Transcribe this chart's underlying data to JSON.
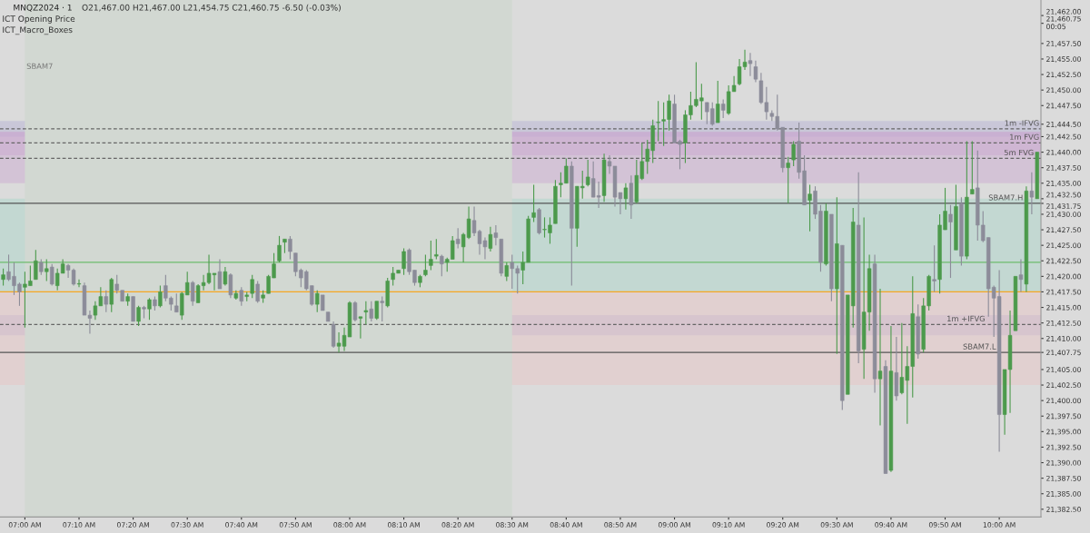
{
  "chart_data": {
    "type": "candlestick",
    "title": "MNQZ2024 · 1",
    "subtitle": "O21,467.00 H21,467.00 L21,454.75 C21,460.75 -6.50 (-0.03%)",
    "annotations": [
      "ICT Opening Price",
      "ICT_Macro_Boxes"
    ],
    "colors": [
      "#4c9a4c",
      "#8c8c99",
      "#8c8c99",
      "#8c8c99",
      "#4c9a4c",
      "#4c9a4c",
      "#4c9a4c",
      "#8c8c99",
      "#4c9a4c",
      "#8c8c99",
      "#4c9a4c",
      "#4c9a4c",
      "#8c8c99",
      "#8c8c99",
      "#4c9a4c",
      "#8c8c99",
      "#8c8c99",
      "#4c9a4c",
      "#4c9a4c",
      "#8c8c99",
      "#4c9a4c",
      "#8c8c99",
      "#8c8c99",
      "#4c9a4c",
      "#8c8c99",
      "#4c9a4c",
      "#8c8c99",
      "#4c9a4c",
      "#8c8c99",
      "#4c9a4c",
      "#8c8c99",
      "#8c8c99",
      "#8c8c99",
      "#4c9a4c",
      "#4c9a4c",
      "#8c8c99",
      "#4c9a4c",
      "#4c9a4c",
      "#4c9a4c",
      "#4c9a4c",
      "#8c8c99",
      "#4c9a4c",
      "#8c8c99",
      "#4c9a4c",
      "#8c8c99",
      "#4c9a4c",
      "#4c9a4c",
      "#8c8c99",
      "#4c9a4c",
      "#4c9a4c",
      "#4c9a4c",
      "#4c9a4c",
      "#4c9a4c",
      "#8c8c99",
      "#8c8c99",
      "#8c8c99",
      "#8c8c99",
      "#8c8c99",
      "#4c9a4c",
      "#8c8c99",
      "#8c8c99",
      "#8c8c99",
      "#4c9a4c",
      "#4c9a4c",
      "#4c9a4c",
      "#8c8c99",
      "#4c9a4c",
      "#4c9a4c",
      "#8c8c99",
      "#4c9a4c",
      "#8c8c99",
      "#4c9a4c",
      "#4c9a4c",
      "#4c9a4c",
      "#4c9a4c",
      "#8c8c99",
      "#8c8c99",
      "#4c9a4c",
      "#4c9a4c",
      "#4c9a4c",
      "#4c9a4c",
      "#8c8c99",
      "#4c9a4c",
      "#4c9a4c",
      "#8c8c99",
      "#4c9a4c",
      "#4c9a4c",
      "#8c8c99",
      "#8c8c99",
      "#8c8c99",
      "#4c9a4c",
      "#8c8c99",
      "#8c8c99",
      "#4c9a4c",
      "#8c8c99",
      "#8c8c99",
      "#4c9a4c",
      "#4c9a4c",
      "#4c9a4c",
      "#8c8c99",
      "#4c9a4c",
      "#4c9a4c",
      "#4c9a4c",
      "#4c9a4c",
      "#4c9a4c",
      "#8c8c99",
      "#4c9a4c",
      "#4c9a4c",
      "#4c9a4c",
      "#8c8c99",
      "#8c8c99",
      "#4c9a4c",
      "#8c8c99",
      "#8c8c99",
      "#8c8c99",
      "#4c9a4c",
      "#8c8c99",
      "#4c9a4c",
      "#4c9a4c",
      "#4c9a4c",
      "#4c9a4c",
      "#4c9a4c",
      "#4c9a4c",
      "#4c9a4c",
      "#8c8c99",
      "#8c8c99",
      "#4c9a4c",
      "#4c9a4c",
      "#4c9a4c",
      "#4c9a4c",
      "#8c8c99",
      "#8c8c99",
      "#4c9a4c",
      "#8c8c99",
      "#4c9a4c",
      "#4c9a4c",
      "#4c9a4c",
      "#4c9a4c",
      "#8c8c99",
      "#8c8c99",
      "#8c8c99",
      "#8c8c99",
      "#8c8c99",
      "#8c8c99",
      "#8c8c99",
      "#4c9a4c",
      "#4c9a4c",
      "#8c8c99",
      "#8c8c99",
      "#4c9a4c",
      "#8c8c99",
      "#8c8c99",
      "#4c9a4c",
      "#8c8c99",
      "#4c9a4c",
      "#8c8c99",
      "#4c9a4c",
      "#4c9a4c",
      "#8c8c99",
      "#4c9a4c",
      "#4c9a4c",
      "#8c8c99",
      "#4c9a4c",
      "#8c8c99",
      "#4c9a4c",
      "#8c8c99",
      "#4c9a4c",
      "#4c9a4c",
      "#4c9a4c",
      "#8c8c99",
      "#4c9a4c",
      "#4c9a4c",
      "#8c8c99",
      "#4c9a4c",
      "#4c9a4c",
      "#8c8c99",
      "#4c9a4c",
      "#8c8c99",
      "#4c9a4c",
      "#4c9a4c",
      "#8c8c99",
      "#8c8c99",
      "#8c8c99",
      "#8c8c99",
      "#8c8c99",
      "#4c9a4c",
      "#4c9a4c",
      "#4c9a4c",
      "#8c8c99",
      "#4c9a4c",
      "#8c8c99",
      "#4c9a4c"
    ],
    "categories": [
      null,
      null,
      null,
      null,
      "07:00 AM",
      null,
      null,
      null,
      null,
      null,
      null,
      null,
      null,
      null,
      "07:10 AM",
      null,
      null,
      null,
      null,
      null,
      null,
      null,
      null,
      null,
      "07:20 AM",
      null,
      null,
      null,
      null,
      null,
      null,
      null,
      null,
      null,
      "07:30 AM",
      null,
      null,
      null,
      null,
      null,
      null,
      null,
      null,
      null,
      "07:40 AM",
      null,
      null,
      null,
      null,
      null,
      null,
      null,
      null,
      null,
      "07:50 AM",
      null,
      null,
      null,
      null,
      null,
      null,
      null,
      null,
      null,
      "08:00 AM",
      null,
      null,
      null,
      null,
      null,
      null,
      null,
      null,
      null,
      "08:10 AM",
      null,
      null,
      null,
      null,
      null,
      null,
      null,
      null,
      null,
      "08:20 AM",
      null,
      null,
      null,
      null,
      null,
      null,
      null,
      null,
      null,
      "08:30 AM",
      null,
      null,
      null,
      null,
      null,
      null,
      null,
      null,
      null,
      "08:40 AM",
      null,
      null,
      null,
      null,
      null,
      null,
      null,
      null,
      null,
      "08:50 AM",
      null,
      null,
      null,
      null,
      null,
      null,
      null,
      null,
      null,
      "09:00 AM",
      null,
      null,
      null,
      null,
      null,
      null,
      null,
      null,
      null,
      "09:10 AM",
      null,
      null,
      null,
      null,
      null,
      null,
      null,
      null,
      null,
      "09:20 AM",
      null,
      null,
      null,
      null,
      null,
      null,
      null,
      null,
      null,
      "09:30 AM",
      null,
      null,
      null,
      null,
      null,
      null,
      null,
      null,
      null,
      "09:40 AM",
      null,
      null,
      null,
      null,
      null,
      null,
      null,
      null,
      null,
      "09:50 AM",
      null,
      null,
      null,
      null,
      null,
      null,
      null,
      null,
      null,
      "10:00 AM",
      null,
      null,
      null,
      null,
      null,
      null,
      null
    ],
    "ohlc": [
      [
        21419.5,
        21421.25,
        21418.5,
        21420.25
      ],
      [
        21420.75,
        21423.5,
        21419.25,
        21419.5
      ],
      [
        21420.0,
        21422.25,
        21417.0,
        21418.5
      ],
      [
        21418.75,
        21419.0,
        21415.25,
        21417.5
      ],
      [
        21418.25,
        21420.75,
        21411.75,
        21418.75
      ],
      [
        21418.5,
        21421.75,
        21418.5,
        21419.25
      ],
      [
        21419.5,
        21424.25,
        21419.5,
        21422.5
      ],
      [
        21422.25,
        21422.75,
        21420.25,
        21420.75
      ],
      [
        21420.75,
        21422.75,
        21419.25,
        21421.25
      ],
      [
        21421.5,
        21422.0,
        21418.5,
        21418.75
      ],
      [
        21418.5,
        21421.25,
        21417.75,
        21420.5
      ],
      [
        21420.5,
        21422.75,
        21420.5,
        21422.0
      ],
      [
        21421.75,
        21422.0,
        21419.75,
        21421.0
      ],
      [
        21421.0,
        21421.25,
        21418.5,
        21418.75
      ],
      [
        21418.75,
        21419.5,
        21418.25,
        21418.75
      ],
      [
        21418.5,
        21419.0,
        21413.75,
        21413.75
      ],
      [
        21413.75,
        21414.5,
        21410.75,
        21413.25
      ],
      [
        21413.75,
        21416.0,
        21413.0,
        21415.25
      ],
      [
        21415.25,
        21418.25,
        21415.25,
        21416.75
      ],
      [
        21416.75,
        21417.75,
        21414.25,
        21415.5
      ],
      [
        21415.5,
        21419.75,
        21414.25,
        21419.5
      ],
      [
        21418.75,
        21420.25,
        21417.25,
        21417.75
      ],
      [
        21417.75,
        21417.75,
        21416.0,
        21416.0
      ],
      [
        21416.0,
        21417.25,
        21415.25,
        21416.75
      ],
      [
        21416.75,
        21416.75,
        21412.75,
        21412.75
      ],
      [
        21412.75,
        21415.25,
        21412.0,
        21415.0
      ],
      [
        21415.0,
        21415.25,
        21413.25,
        21414.75
      ],
      [
        21414.75,
        21416.5,
        21413.0,
        21416.25
      ],
      [
        21416.25,
        21416.75,
        21414.5,
        21415.25
      ],
      [
        21415.25,
        21418.5,
        21415.0,
        21417.5
      ],
      [
        21418.5,
        21420.25,
        21416.0,
        21416.5
      ],
      [
        21416.5,
        21416.75,
        21414.5,
        21415.5
      ],
      [
        21415.25,
        21417.25,
        21414.25,
        21414.25
      ],
      [
        21413.75,
        21417.5,
        21413.0,
        21417.25
      ],
      [
        21417.0,
        21420.75,
        21417.0,
        21419.0
      ],
      [
        21419.0,
        21419.25,
        21415.25,
        21416.0
      ],
      [
        21415.75,
        21418.75,
        21415.75,
        21418.5
      ],
      [
        21418.5,
        21420.25,
        21417.75,
        21419.0
      ],
      [
        21419.0,
        21423.5,
        21418.75,
        21420.5
      ],
      [
        21420.25,
        21420.5,
        21417.75,
        21420.5
      ],
      [
        21420.75,
        21422.75,
        21418.0,
        21418.0
      ],
      [
        21418.75,
        21421.5,
        21418.5,
        21420.75
      ],
      [
        21420.25,
        21420.5,
        21416.5,
        21417.0
      ],
      [
        21416.5,
        21417.75,
        21416.25,
        21417.25
      ],
      [
        21417.75,
        21418.25,
        21415.25,
        21416.0
      ],
      [
        21416.75,
        21417.5,
        21416.0,
        21417.0
      ],
      [
        21417.25,
        21420.25,
        21416.5,
        21419.5
      ],
      [
        21418.75,
        21419.25,
        21415.75,
        21416.0
      ],
      [
        21416.5,
        21417.75,
        21415.75,
        21417.0
      ],
      [
        21417.25,
        21420.25,
        21417.25,
        21420.0
      ],
      [
        21419.75,
        21423.75,
        21419.75,
        21422.0
      ],
      [
        21422.5,
        21426.5,
        21422.25,
        21425.0
      ],
      [
        21425.5,
        21426.0,
        21423.75,
        21426.0
      ],
      [
        21426.0,
        21426.5,
        21422.75,
        21424.0
      ],
      [
        21423.75,
        21423.75,
        21420.0,
        21420.75
      ],
      [
        21421.0,
        21421.25,
        21418.25,
        21419.75
      ],
      [
        21420.75,
        21421.0,
        21417.75,
        21418.0
      ],
      [
        21418.5,
        21418.5,
        21415.25,
        21415.5
      ],
      [
        21415.5,
        21417.75,
        21414.25,
        21417.25
      ],
      [
        21417.0,
        21417.0,
        21414.5,
        21414.5
      ],
      [
        21414.25,
        21414.25,
        21412.75,
        21412.75
      ],
      [
        21412.25,
        21412.75,
        21408.5,
        21408.75
      ],
      [
        21408.75,
        21411.0,
        21407.75,
        21409.25
      ],
      [
        21408.75,
        21411.75,
        21408.0,
        21410.5
      ],
      [
        21410.25,
        21416.0,
        21410.25,
        21415.75
      ],
      [
        21415.75,
        21416.0,
        21412.75,
        21413.0
      ],
      [
        21413.25,
        21413.5,
        21410.0,
        21413.5
      ],
      [
        21414.25,
        21416.0,
        21412.25,
        21414.5
      ],
      [
        21414.75,
        21416.0,
        21412.75,
        21413.25
      ],
      [
        21413.25,
        21416.0,
        21413.0,
        21416.0
      ],
      [
        21416.0,
        21416.75,
        21412.75,
        21415.75
      ],
      [
        21415.25,
        21419.75,
        21415.0,
        21419.25
      ],
      [
        21419.5,
        21421.5,
        21418.5,
        21420.5
      ],
      [
        21420.5,
        21421.0,
        21420.5,
        21421.0
      ],
      [
        21421.25,
        21424.5,
        21420.25,
        21424.0
      ],
      [
        21424.25,
        21424.5,
        21420.25,
        21420.75
      ],
      [
        21421.0,
        21421.0,
        21418.5,
        21419.0
      ],
      [
        21419.0,
        21420.25,
        21418.25,
        21420.0
      ],
      [
        21420.25,
        21423.5,
        21420.0,
        21421.0
      ],
      [
        21421.75,
        21425.75,
        21421.0,
        21422.75
      ],
      [
        21423.25,
        21426.0,
        21422.75,
        21423.5
      ],
      [
        21423.25,
        21423.5,
        21420.0,
        21422.0
      ],
      [
        21422.25,
        21423.0,
        21420.75,
        21422.75
      ],
      [
        21422.75,
        21426.5,
        21422.75,
        21425.75
      ],
      [
        21426.0,
        21427.75,
        21424.5,
        21425.25
      ],
      [
        21424.75,
        21427.0,
        21422.25,
        21426.75
      ],
      [
        21426.25,
        21431.25,
        21426.0,
        21429.25
      ],
      [
        21429.0,
        21431.25,
        21426.5,
        21427.0
      ],
      [
        21427.25,
        21427.5,
        21423.5,
        21425.25
      ],
      [
        21425.75,
        21426.25,
        21422.75,
        21424.75
      ],
      [
        21424.5,
        21428.0,
        21424.0,
        21426.75
      ],
      [
        21427.0,
        21428.25,
        21425.0,
        21426.25
      ],
      [
        21426.0,
        21426.0,
        21420.0,
        21420.5
      ],
      [
        21420.0,
        21422.25,
        21419.25,
        21421.75
      ],
      [
        21422.25,
        21423.5,
        21418.0,
        21421.25
      ],
      [
        21421.25,
        21421.75,
        21417.25,
        21420.5
      ],
      [
        21421.0,
        21424.0,
        21418.75,
        21422.25
      ],
      [
        21422.25,
        21429.75,
        21422.25,
        21429.25
      ],
      [
        21429.5,
        21434.75,
        21428.75,
        21430.25
      ],
      [
        21430.75,
        21431.0,
        21426.75,
        21427.0
      ],
      [
        21427.5,
        21429.5,
        21426.25,
        21427.5
      ],
      [
        21427.0,
        21429.5,
        21425.25,
        21428.25
      ],
      [
        21428.5,
        21435.5,
        21428.5,
        21434.5
      ],
      [
        21434.75,
        21436.75,
        21432.75,
        21435.0
      ],
      [
        21435.0,
        21439.0,
        21435.0,
        21437.75
      ],
      [
        21437.75,
        21438.5,
        21418.5,
        21427.75
      ],
      [
        21427.75,
        21434.5,
        21424.75,
        21434.5
      ],
      [
        21434.25,
        21437.0,
        21432.5,
        21434.5
      ],
      [
        21434.75,
        21438.75,
        21434.5,
        21436.0
      ],
      [
        21435.75,
        21438.5,
        21432.75,
        21432.75
      ],
      [
        21433.0,
        21435.25,
        21431.0,
        21432.75
      ],
      [
        21433.0,
        21439.75,
        21432.0,
        21438.75
      ],
      [
        21438.5,
        21439.5,
        21436.5,
        21437.75
      ],
      [
        21437.75,
        21437.75,
        21431.25,
        21432.75
      ],
      [
        21433.5,
        21433.5,
        21430.0,
        21432.5
      ],
      [
        21432.5,
        21435.0,
        21430.75,
        21434.25
      ],
      [
        21435.0,
        21436.25,
        21429.25,
        21431.5
      ],
      [
        21432.0,
        21438.75,
        21431.75,
        21436.25
      ],
      [
        21435.75,
        21441.5,
        21435.5,
        21438.5
      ],
      [
        21438.5,
        21442.0,
        21436.5,
        21440.5
      ],
      [
        21440.25,
        21445.25,
        21438.25,
        21444.25
      ],
      [
        21444.75,
        21448.25,
        21441.75,
        21444.75
      ],
      [
        21445.0,
        21448.0,
        21441.0,
        21445.25
      ],
      [
        21445.25,
        21449.25,
        21443.5,
        21448.25
      ],
      [
        21447.75,
        21449.25,
        21441.5,
        21441.5
      ],
      [
        21441.75,
        21442.0,
        21437.25,
        21441.25
      ],
      [
        21441.5,
        21446.75,
        21438.25,
        21446.0
      ],
      [
        21446.0,
        21449.75,
        21445.25,
        21447.5
      ],
      [
        21447.5,
        21454.5,
        21447.25,
        21448.5
      ],
      [
        21448.25,
        21451.0,
        21445.25,
        21448.75
      ],
      [
        21448.0,
        21448.0,
        21444.5,
        21446.5
      ],
      [
        21447.0,
        21448.0,
        21444.25,
        21444.5
      ],
      [
        21444.75,
        21451.5,
        21444.75,
        21447.75
      ],
      [
        21447.75,
        21448.5,
        21445.5,
        21446.75
      ],
      [
        21446.25,
        21450.75,
        21446.0,
        21449.75
      ],
      [
        21449.75,
        21452.25,
        21449.75,
        21450.75
      ],
      [
        21451.0,
        21455.0,
        21450.75,
        21453.75
      ],
      [
        21453.75,
        21456.5,
        21453.25,
        21454.5
      ],
      [
        21454.75,
        21456.0,
        21452.25,
        21454.25
      ],
      [
        21453.75,
        21454.75,
        21451.25,
        21451.75
      ],
      [
        21451.5,
        21452.75,
        21447.75,
        21448.0
      ],
      [
        21448.0,
        21450.5,
        21445.25,
        21446.5
      ],
      [
        21446.25,
        21446.75,
        21445.0,
        21445.75
      ],
      [
        21445.75,
        21449.25,
        21443.5,
        21443.75
      ],
      [
        21444.0,
        21444.0,
        21436.75,
        21437.5
      ],
      [
        21437.5,
        21439.25,
        21431.75,
        21438.25
      ],
      [
        21438.75,
        21441.75,
        21437.75,
        21441.25
      ],
      [
        21441.75,
        21444.75,
        21435.75,
        21436.75
      ],
      [
        21437.0,
        21439.5,
        21431.5,
        21431.5
      ],
      [
        21432.25,
        21434.75,
        21427.25,
        21433.25
      ],
      [
        21433.75,
        21434.5,
        21429.25,
        21430.0
      ],
      [
        21430.5,
        21431.5,
        21420.75,
        21422.25
      ],
      [
        21422.0,
        21431.75,
        21421.75,
        21430.5
      ],
      [
        21430.0,
        21430.0,
        21416.0,
        21418.0
      ],
      [
        21418.0,
        21432.75,
        21407.5,
        21425.25
      ],
      [
        21425.0,
        21425.0,
        21398.5,
        21400.0
      ],
      [
        21401.0,
        21417.0,
        21401.0,
        21417.0
      ],
      [
        21415.25,
        21431.0,
        21411.75,
        21428.75
      ],
      [
        21428.25,
        21436.75,
        21406.0,
        21408.0
      ],
      [
        21408.25,
        21429.5,
        21403.5,
        21414.25
      ],
      [
        21414.25,
        21423.5,
        21411.25,
        21421.25
      ],
      [
        21422.0,
        21423.5,
        21401.25,
        21403.5
      ],
      [
        21403.5,
        21418.0,
        21396.0,
        21404.75
      ],
      [
        21405.5,
        21406.5,
        21388.25,
        21388.25
      ],
      [
        21388.75,
        21412.0,
        21388.5,
        21404.75
      ],
      [
        21404.5,
        21410.25,
        21400.0,
        21400.75
      ],
      [
        21401.25,
        21412.5,
        21401.0,
        21403.75
      ],
      [
        21403.25,
        21408.75,
        21396.25,
        21405.5
      ],
      [
        21405.5,
        21420.0,
        21400.5,
        21414.0
      ],
      [
        21413.5,
        21415.5,
        21406.75,
        21407.5
      ],
      [
        21408.25,
        21416.5,
        21407.75,
        21415.25
      ],
      [
        21415.25,
        21420.25,
        21414.5,
        21420.0
      ],
      [
        21419.5,
        21425.0,
        21417.5,
        21419.25
      ],
      [
        21419.5,
        21430.0,
        21417.25,
        21428.25
      ],
      [
        21427.5,
        21434.25,
        21427.5,
        21430.5
      ],
      [
        21430.0,
        21431.5,
        21419.75,
        21428.75
      ],
      [
        21424.25,
        21434.75,
        21424.25,
        21431.25
      ],
      [
        21431.75,
        21432.75,
        21421.75,
        21423.25
      ],
      [
        21423.25,
        21441.75,
        21422.75,
        21432.75
      ],
      [
        21433.25,
        21441.75,
        21433.25,
        21434.0
      ],
      [
        21434.25,
        21440.25,
        21425.75,
        21428.25
      ],
      [
        21428.25,
        21430.5,
        21425.5,
        21425.75
      ],
      [
        21426.25,
        21426.25,
        21413.5,
        21418.0
      ],
      [
        21418.25,
        21418.5,
        21410.25,
        21416.5
      ],
      [
        21416.75,
        21421.0,
        21391.75,
        21397.75
      ],
      [
        21397.75,
        21405.0,
        21394.5,
        21405.0
      ],
      [
        21405.0,
        21414.5,
        21398.0,
        21410.5
      ],
      [
        21411.25,
        21420.0,
        21411.25,
        21420.0
      ],
      [
        21420.25,
        21422.75,
        21417.5,
        21419.5
      ],
      [
        21418.75,
        21434.5,
        21417.5,
        21433.75
      ],
      [
        21433.75,
        21436.75,
        21430.0,
        21432.75
      ],
      [
        21432.5,
        21440.0,
        21432.5,
        21440.0
      ]
    ],
    "ylim": [
      21381.25,
      21464.5
    ],
    "yticks": [
      {
        "value": 21382.5,
        "label": "21,382.50"
      },
      {
        "value": 21385,
        "label": "21,385.00"
      },
      {
        "value": 21387.5,
        "label": "21,387.50"
      },
      {
        "value": 21390,
        "label": "21,390.00"
      },
      {
        "value": 21392.5,
        "label": "21,392.50"
      },
      {
        "value": 21395,
        "label": "21,395.00"
      },
      {
        "value": 21397.5,
        "label": "21,397.50"
      },
      {
        "value": 21400,
        "label": "21,400.00"
      },
      {
        "value": 21402.5,
        "label": "21,402.50"
      },
      {
        "value": 21405,
        "label": "21,405.00"
      },
      {
        "value": 21407.75,
        "label": "21,407.75"
      },
      {
        "value": 21410,
        "label": "21,410.00"
      },
      {
        "value": 21412.5,
        "label": "21,412.50"
      },
      {
        "value": 21415,
        "label": "21,415.00"
      },
      {
        "value": 21417.5,
        "label": "21,417.50"
      },
      {
        "value": 21420,
        "label": "21,420.00"
      },
      {
        "value": 21422.5,
        "label": "21,422.50"
      },
      {
        "value": 21425,
        "label": "21,425.00"
      },
      {
        "value": 21427.5,
        "label": "21,427.50"
      },
      {
        "value": 21430,
        "label": "21,430.00"
      },
      {
        "value": 21431.75,
        "label": "21,431.75"
      },
      {
        "value": 21432.5,
        "label": "21,432.50"
      },
      {
        "value": 21435,
        "label": "21,435.00"
      },
      {
        "value": 21437.5,
        "label": "21,437.50"
      },
      {
        "value": 21440,
        "label": "21,440.00"
      },
      {
        "value": 21442.5,
        "label": "21,442.50"
      },
      {
        "value": 21444.5,
        "label": "21,444.50"
      },
      {
        "value": 21447.5,
        "label": "21,447.50"
      },
      {
        "value": 21450,
        "label": "21,450.00"
      },
      {
        "value": 21452.5,
        "label": "21,452.50"
      },
      {
        "value": 21455,
        "label": "21,455.00"
      },
      {
        "value": 21457.5,
        "label": "21,457.50"
      },
      {
        "value": 21460.75,
        "label": "21,460.75\n00:05"
      },
      {
        "value": 21462,
        "label": "21,462.00"
      }
    ],
    "ref_lines": [
      {
        "axis": "y",
        "value": 21431.75,
        "label": "SBAM7.H",
        "color": "#555555"
      },
      {
        "axis": "y",
        "value": 21407.75,
        "label": "SBAM7.L",
        "color": "#555555"
      },
      {
        "axis": "y",
        "value": 21417.5,
        "color": "#f5a623"
      },
      {
        "axis": "y",
        "value": 21422.25,
        "color": "#6dbb6d"
      },
      {
        "axis": "y",
        "value": 21443.75,
        "label": "1m -IFVG",
        "color": "#666666",
        "line_style": "dashed"
      },
      {
        "axis": "y",
        "value": 21441.5,
        "label": "1m FVG",
        "color": "#666666",
        "line_style": "dashed"
      },
      {
        "axis": "y",
        "value": 21439.0,
        "label": "5m FVG",
        "color": "#666666",
        "line_style": "dashed"
      },
      {
        "axis": "y",
        "value": 21412.25,
        "label": "1m +IFVG",
        "color": "#666666",
        "line_style": "dashed"
      }
    ],
    "bands": [
      {
        "axis": "x",
        "from": "07:00 AM",
        "to": "08:30 AM",
        "label": "SBAM7",
        "color": "#d2d8d2"
      },
      {
        "axis": "y",
        "from": 21442.5,
        "to": 21445.0,
        "color": "#b4b0d4"
      },
      {
        "axis": "y",
        "from": 21435.0,
        "to": 21443.25,
        "color": "#caa6d0"
      },
      {
        "axis": "y",
        "from": 21439.5,
        "to": 21443.25,
        "color": "#caa6d0"
      },
      {
        "axis": "y",
        "from": 21410.5,
        "to": 21413.75,
        "color": "#b4b0d4"
      },
      {
        "axis": "y",
        "from": 21417.5,
        "to": 21432.5,
        "color": "#a6d4c8"
      },
      {
        "axis": "y",
        "from": 21402.5,
        "to": 21417.5,
        "color": "#e8c4c4"
      }
    ],
    "grid": false,
    "legend": false
  }
}
